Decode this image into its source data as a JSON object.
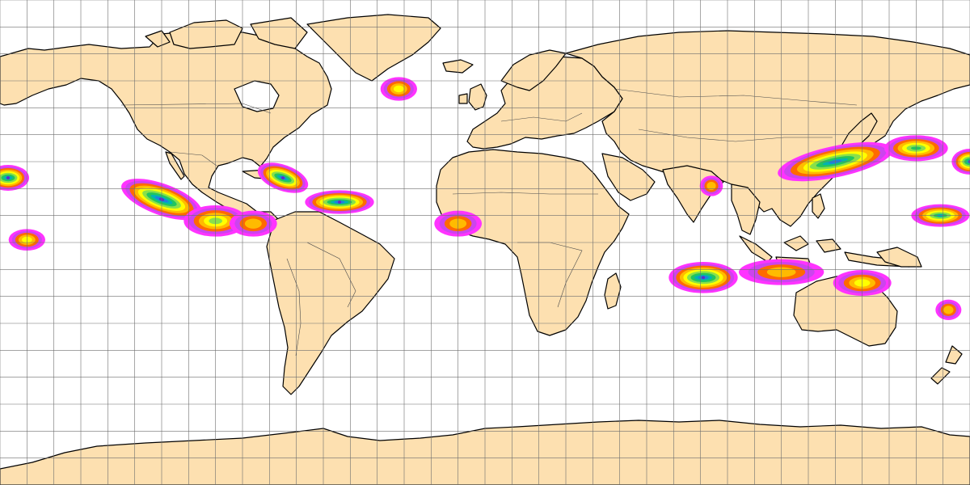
{
  "map": {
    "projection": "equirectangular",
    "colors": {
      "ocean": "#ffffff",
      "land": "#fde0b0",
      "coastline": "#000000",
      "graticule": "#6e6e6e",
      "border": "#4a4a4a"
    },
    "graticule": {
      "lon_step_degrees": 10,
      "lat_step_degrees": 10
    },
    "precip_palette": [
      "#ff33ff",
      "#cc44ee",
      "#ff6a00",
      "#ffbb00",
      "#ffff00",
      "#8ae04a",
      "#22c55e",
      "#00b3b3",
      "#1f7fe0",
      "#5a2fc8"
    ],
    "precip_areas": [
      {
        "id": "west-atlantic-rockall",
        "lon": -32,
        "lat": 57,
        "rlon": 5,
        "rlat": 2.6,
        "peak": 4
      },
      {
        "id": "hawaii-north",
        "lon": -177,
        "lat": 24,
        "rlon": 6,
        "rlat": 3,
        "peak": 9
      },
      {
        "id": "east-pacific-mexico",
        "lon": -120,
        "lat": 16,
        "rlon": 14,
        "rlat": 4,
        "peak": 9,
        "angle": 20
      },
      {
        "id": "central-america",
        "lon": -100,
        "lat": 8,
        "rlon": 10,
        "rlat": 4,
        "peak": 5
      },
      {
        "id": "caribbean-east",
        "lon": -86,
        "lat": 7,
        "rlon": 7,
        "rlat": 3,
        "peak": 3
      },
      {
        "id": "bahamas",
        "lon": -75,
        "lat": 24,
        "rlon": 8,
        "rlat": 3,
        "peak": 9,
        "angle": 20
      },
      {
        "id": "central-atlantic",
        "lon": -54,
        "lat": 15,
        "rlon": 11,
        "rlat": 2.6,
        "peak": 9
      },
      {
        "id": "west-africa",
        "lon": -10,
        "lat": 7,
        "rlon": 7,
        "rlat": 3,
        "peak": 3
      },
      {
        "id": "south-pacific-hawaii",
        "lon": -170,
        "lat": 1,
        "rlon": 5,
        "rlat": 2.2,
        "peak": 4
      },
      {
        "id": "bay-of-bengal",
        "lon": 84,
        "lat": 21,
        "rlon": 2.5,
        "rlat": 2,
        "peak": 3
      },
      {
        "id": "china-japan",
        "lon": 130,
        "lat": 30,
        "rlon": 20,
        "rlat": 4,
        "peak": 8,
        "angle": -12
      },
      {
        "id": "northwest-pacific",
        "lon": 160,
        "lat": 35,
        "rlon": 10,
        "rlat": 3,
        "peak": 6
      },
      {
        "id": "west-pacific-east",
        "lon": 169,
        "lat": 10,
        "rlon": 9,
        "rlat": 2.4,
        "peak": 7
      },
      {
        "id": "indian-ocean-south",
        "lon": 81,
        "lat": -13,
        "rlon": 11,
        "rlat": 4,
        "peak": 9
      },
      {
        "id": "indonesia",
        "lon": 110,
        "lat": -11,
        "rlon": 14,
        "rlat": 3,
        "peak": 3
      },
      {
        "id": "banda-sea",
        "lon": 140,
        "lat": -15,
        "rlon": 9,
        "rlat": 3,
        "peak": 4
      },
      {
        "id": "coral-sea",
        "lon": 172,
        "lat": -25,
        "rlon": 3,
        "rlat": 2,
        "peak": 3
      },
      {
        "id": "dateline-east",
        "lon": 180,
        "lat": 30,
        "rlon": 5,
        "rlat": 3,
        "peak": 9
      }
    ]
  }
}
